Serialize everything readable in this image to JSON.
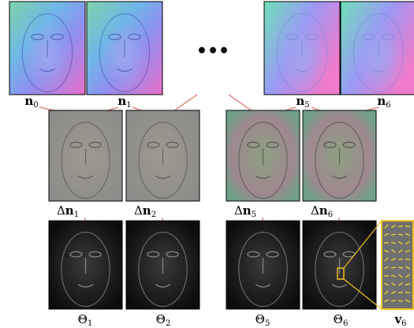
{
  "ellipsis": "•••",
  "normals": [
    {
      "symbol": "n",
      "index": "0"
    },
    {
      "symbol": "n",
      "index": "1"
    },
    {
      "symbol": "n",
      "index": "5"
    },
    {
      "symbol": "n",
      "index": "6"
    }
  ],
  "differences": [
    {
      "prefix": "Δ",
      "symbol": "n",
      "index": "1"
    },
    {
      "prefix": "Δ",
      "symbol": "n",
      "index": "2"
    },
    {
      "prefix": "Δ",
      "symbol": "n",
      "index": "5"
    },
    {
      "prefix": "Δ",
      "symbol": "n",
      "index": "6"
    }
  ],
  "angles": [
    {
      "symbol": "Θ",
      "index": "1"
    },
    {
      "symbol": "Θ",
      "index": "2"
    },
    {
      "symbol": "Θ",
      "index": "5"
    },
    {
      "symbol": "Θ",
      "index": "6"
    }
  ],
  "vector_field": {
    "symbol": "v",
    "index": "6"
  }
}
